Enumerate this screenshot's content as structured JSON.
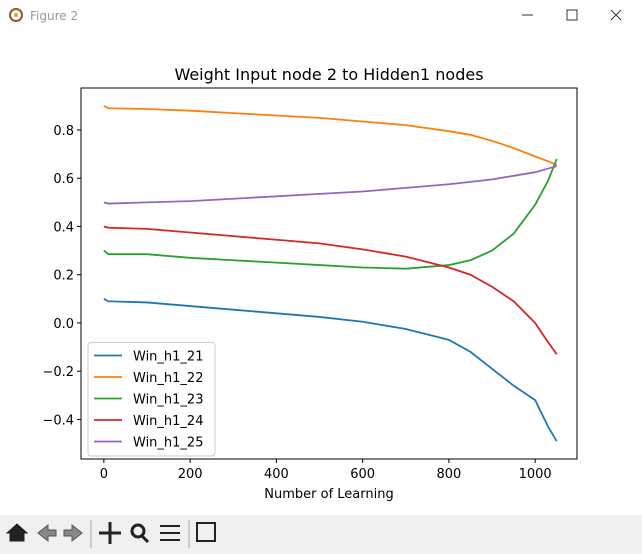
{
  "window": {
    "title": "Figure 2"
  },
  "chart_data": {
    "type": "line",
    "title": "Weight Input node 2 to Hidden1 nodes",
    "x_label": "Number of Learning",
    "x": [
      0,
      10,
      100,
      200,
      300,
      400,
      500,
      600,
      700,
      800,
      850,
      900,
      950,
      1000,
      1030,
      1050
    ],
    "series": [
      {
        "name": "Win_h1_21",
        "color": "#1f77b4",
        "values": [
          0.1,
          0.09,
          0.085,
          0.07,
          0.055,
          0.04,
          0.025,
          0.005,
          -0.025,
          -0.07,
          -0.12,
          -0.19,
          -0.26,
          -0.32,
          -0.43,
          -0.49
        ]
      },
      {
        "name": "Win_h1_22",
        "color": "#ff7f0e",
        "values": [
          0.9,
          0.89,
          0.887,
          0.88,
          0.87,
          0.86,
          0.85,
          0.835,
          0.82,
          0.795,
          0.78,
          0.755,
          0.725,
          0.69,
          0.67,
          0.655
        ]
      },
      {
        "name": "Win_h1_23",
        "color": "#2ca02c",
        "values": [
          0.3,
          0.285,
          0.285,
          0.27,
          0.26,
          0.25,
          0.24,
          0.23,
          0.225,
          0.24,
          0.26,
          0.3,
          0.37,
          0.49,
          0.59,
          0.68
        ]
      },
      {
        "name": "Win_h1_24",
        "color": "#d62728",
        "values": [
          0.4,
          0.395,
          0.39,
          0.375,
          0.36,
          0.345,
          0.33,
          0.305,
          0.275,
          0.23,
          0.2,
          0.15,
          0.09,
          0.0,
          -0.08,
          -0.13
        ]
      },
      {
        "name": "Win_h1_25",
        "color": "#9467bd",
        "values": [
          0.5,
          0.495,
          0.5,
          0.505,
          0.515,
          0.525,
          0.535,
          0.545,
          0.56,
          0.575,
          0.585,
          0.595,
          0.61,
          0.625,
          0.64,
          0.65
        ]
      }
    ],
    "xlim": [
      -53,
      1097
    ],
    "ylim": [
      -0.564,
      0.974
    ],
    "xticks": [
      0,
      200,
      400,
      600,
      800,
      1000
    ],
    "yticks": [
      {
        "value": -0.4,
        "label": "−0.4"
      },
      {
        "value": -0.2,
        "label": "−0.2"
      },
      {
        "value": 0,
        "label": "0.0"
      },
      0.2,
      0.4,
      0.6,
      0.8
    ],
    "legend": "lower left"
  }
}
